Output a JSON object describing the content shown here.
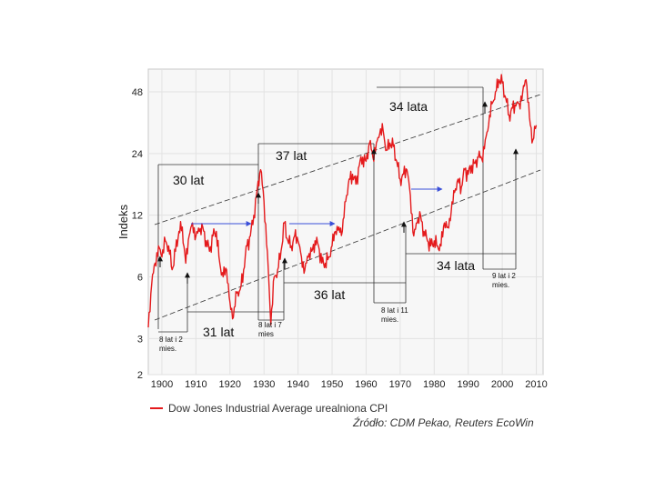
{
  "chart_data": {
    "type": "line",
    "ylabel": "Indeks",
    "y_scale": "log",
    "ylim": [
      2,
      62
    ],
    "xlim": [
      1896,
      2012
    ],
    "y_ticks": [
      2,
      3,
      6,
      12,
      24,
      48
    ],
    "x_ticks": [
      1900,
      1910,
      1920,
      1930,
      1940,
      1950,
      1960,
      1970,
      1980,
      1990,
      2000,
      2010
    ],
    "grid": true,
    "legend": "bottom",
    "series": [
      {
        "name": "Dow Jones Industrial Average urealniona CPI",
        "color": "#e41a1c",
        "x": [
          1896,
          1897,
          1898,
          1899,
          1900,
          1901,
          1902,
          1903,
          1904,
          1905,
          1906,
          1907,
          1908,
          1909,
          1910,
          1911,
          1912,
          1913,
          1914,
          1915,
          1916,
          1917,
          1918,
          1919,
          1920,
          1921,
          1922,
          1923,
          1924,
          1925,
          1926,
          1927,
          1928,
          1929,
          1930,
          1931,
          1932,
          1933,
          1934,
          1935,
          1936,
          1937,
          1938,
          1939,
          1940,
          1941,
          1942,
          1943,
          1944,
          1945,
          1946,
          1947,
          1948,
          1949,
          1950,
          1951,
          1952,
          1953,
          1954,
          1955,
          1956,
          1957,
          1958,
          1959,
          1960,
          1961,
          1962,
          1963,
          1964,
          1965,
          1966,
          1967,
          1968,
          1969,
          1970,
          1971,
          1972,
          1973,
          1974,
          1975,
          1976,
          1977,
          1978,
          1979,
          1980,
          1981,
          1982,
          1983,
          1984,
          1985,
          1986,
          1987,
          1988,
          1989,
          1990,
          1991,
          1992,
          1993,
          1994,
          1995,
          1996,
          1997,
          1998,
          1999,
          2000,
          2001,
          2002,
          2003,
          2004,
          2005,
          2006,
          2007,
          2008,
          2009,
          2010
        ],
        "values": [
          3.4,
          5.5,
          7.0,
          8.5,
          7.5,
          9.0,
          8.5,
          6.5,
          8.0,
          10.0,
          10.5,
          7.0,
          9.5,
          11.0,
          9.5,
          10.0,
          10.5,
          9.0,
          8.0,
          9.5,
          10.0,
          7.0,
          6.0,
          6.5,
          4.5,
          3.8,
          5.0,
          5.2,
          6.5,
          8.5,
          9.5,
          12.0,
          16.0,
          20.0,
          14.0,
          8.0,
          3.5,
          6.0,
          6.5,
          8.0,
          11.0,
          9.0,
          8.5,
          9.5,
          9.0,
          7.5,
          6.5,
          7.5,
          8.0,
          9.0,
          8.5,
          7.0,
          7.0,
          7.5,
          8.5,
          10.0,
          10.5,
          10.0,
          14.0,
          18.0,
          19.0,
          17.0,
          21.0,
          23.0,
          22.0,
          27.0,
          23.0,
          27.0,
          30.0,
          31.0,
          25.0,
          27.0,
          26.0,
          22.0,
          18.0,
          19.0,
          20.0,
          15.0,
          9.5,
          11.0,
          12.0,
          10.0,
          9.0,
          8.5,
          9.0,
          8.5,
          8.5,
          11.0,
          10.5,
          12.5,
          15.5,
          18.0,
          16.5,
          20.0,
          19.0,
          21.0,
          21.5,
          23.0,
          22.5,
          28.0,
          33.0,
          42.0,
          48.0,
          55.0,
          53.0,
          45.0,
          37.0,
          40.0,
          41.0,
          42.0,
          48.0,
          55.0,
          36.0,
          28.0,
          33.0
        ]
      }
    ],
    "annotations": [
      "30 lat",
      "37 lat",
      "34 lata",
      "31 lat",
      "36 lat",
      "34 lata",
      "8 lat i 2 mies.",
      "8 lat i 7 mies",
      "8 lat i 11 mies.",
      "9 lat i 2 mies."
    ],
    "source": "Źródło: CDM Pekao, Reuters EcoWin"
  },
  "colors": {
    "line": "#e41a1c",
    "trend": "#333333",
    "arrow": "#3a4fd8",
    "grid": "#e2e2e2",
    "plot_bg": "#f7f7f7"
  }
}
